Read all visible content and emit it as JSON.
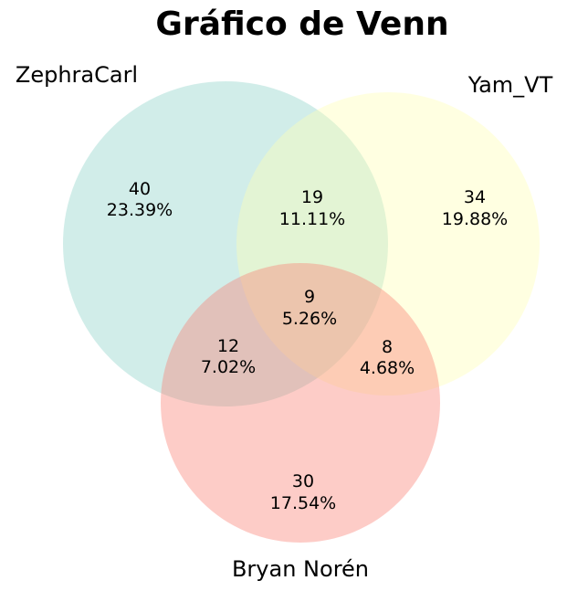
{
  "chart_data": {
    "type": "venn",
    "title": "Gráfico de Venn",
    "sets": [
      {
        "name": "ZephraCarl",
        "color": "#8dd3c7"
      },
      {
        "name": "Yam_VT",
        "color": "#ffffb3"
      },
      {
        "name": "Bryan Norén",
        "color": "#fb8072"
      }
    ],
    "regions": [
      {
        "sets": [
          "ZephraCarl"
        ],
        "count": "40",
        "percent": "23.39%"
      },
      {
        "sets": [
          "ZephraCarl",
          "Yam_VT"
        ],
        "count": "19",
        "percent": "11.11%"
      },
      {
        "sets": [
          "Yam_VT"
        ],
        "count": "34",
        "percent": "19.88%"
      },
      {
        "sets": [
          "ZephraCarl",
          "Yam_VT",
          "Bryan Norén"
        ],
        "count": "9",
        "percent": "5.26%"
      },
      {
        "sets": [
          "ZephraCarl",
          "Bryan Norén"
        ],
        "count": "12",
        "percent": "7.02%"
      },
      {
        "sets": [
          "Yam_VT",
          "Bryan Norén"
        ],
        "count": "8",
        "percent": "4.68%"
      },
      {
        "sets": [
          "Bryan Norén"
        ],
        "count": "30",
        "percent": "17.54%"
      }
    ]
  }
}
